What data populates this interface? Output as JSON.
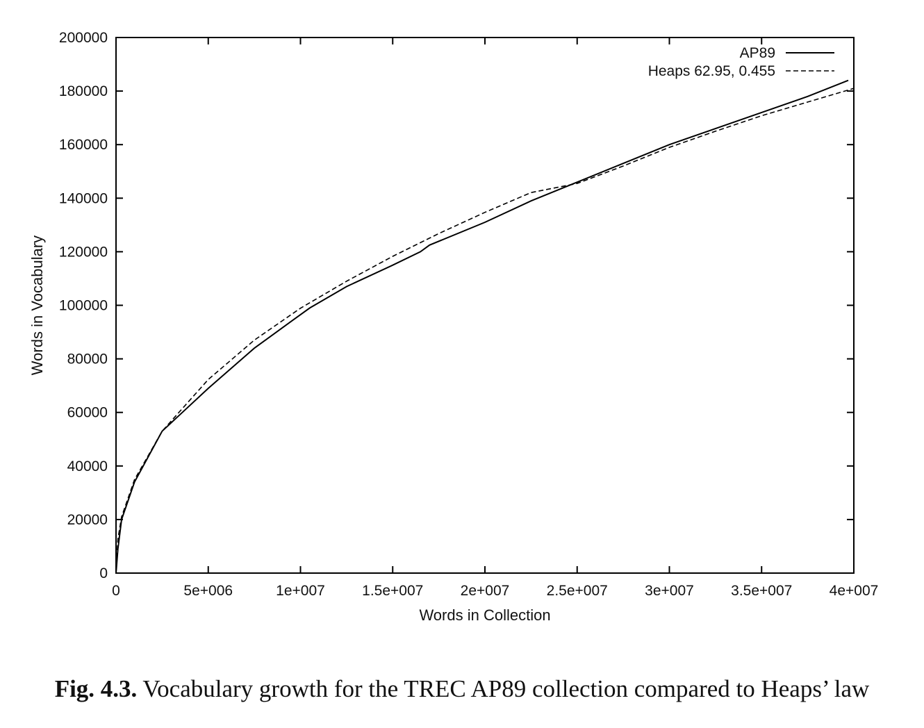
{
  "chart_data": {
    "type": "line",
    "xlabel": "Words in Collection",
    "ylabel": "Words in Vocabulary",
    "xlim": [
      0,
      40000000
    ],
    "ylim": [
      0,
      200000
    ],
    "x_ticks": [
      0,
      5000000,
      10000000,
      15000000,
      20000000,
      25000000,
      30000000,
      35000000,
      40000000
    ],
    "x_tick_labels": [
      "0",
      "5e+006",
      "1e+007",
      "1.5e+007",
      "2e+007",
      "2.5e+007",
      "3e+007",
      "3.5e+007",
      "4e+007"
    ],
    "y_ticks": [
      0,
      20000,
      40000,
      60000,
      80000,
      100000,
      120000,
      140000,
      160000,
      180000,
      200000
    ],
    "y_tick_labels": [
      "0",
      "20000",
      "40000",
      "60000",
      "80000",
      "100000",
      "120000",
      "140000",
      "160000",
      "180000",
      "200000"
    ],
    "grid": false,
    "legend_position": "top-right",
    "series": [
      {
        "name": "AP89",
        "style": "solid",
        "x": [
          0,
          100000,
          300000,
          1000000,
          2500000,
          5000000,
          7500000,
          9500000,
          10500000,
          12500000,
          15000000,
          16500000,
          17000000,
          20000000,
          22500000,
          25000000,
          27500000,
          30000000,
          32500000,
          35000000,
          37500000,
          39700000
        ],
        "y": [
          0,
          9000,
          20000,
          34000,
          53000,
          69000,
          84000,
          94000,
          99000,
          107000,
          115000,
          120000,
          122500,
          131000,
          139000,
          146000,
          153000,
          160000,
          166000,
          172000,
          178000,
          184000
        ]
      },
      {
        "name": "Heaps 62.95, 0.455",
        "style": "dashed",
        "x": [
          0,
          100000,
          300000,
          1000000,
          2500000,
          5000000,
          7500000,
          10000000,
          12500000,
          15000000,
          17500000,
          20000000,
          22500000,
          25000000,
          27500000,
          30000000,
          32500000,
          35000000,
          37500000,
          40000000
        ],
        "y": [
          0,
          12700,
          21000,
          34900,
          53000,
          72300,
          87000,
          98900,
          109000,
          118300,
          126800,
          134700,
          142100,
          145500,
          152000,
          159000,
          165000,
          170800,
          175900,
          181000
        ]
      }
    ]
  },
  "caption": {
    "figure_number": "Fig. 4.3.",
    "text": "Vocabulary growth for the TREC AP89 collection compared to Heaps’ law"
  }
}
